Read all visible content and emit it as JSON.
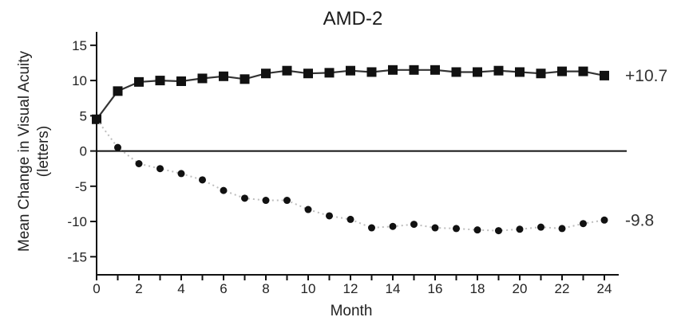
{
  "chart_data": {
    "type": "line",
    "title": "AMD-2",
    "xlabel": "Month",
    "ylabel_line1": "Mean Change in Visual Acuity",
    "ylabel_line2": "(letters)",
    "xlim": [
      0,
      24
    ],
    "ylim": [
      -17,
      16
    ],
    "xticks": [
      0,
      2,
      4,
      6,
      8,
      10,
      12,
      14,
      16,
      18,
      20,
      22,
      24
    ],
    "yticks": [
      15,
      10,
      5,
      0,
      -5,
      -10,
      -15
    ],
    "series": [
      {
        "marker": "square",
        "line_style": "solid",
        "color": "#111111",
        "x": [
          0,
          1,
          2,
          3,
          4,
          5,
          6,
          7,
          8,
          9,
          10,
          11,
          12,
          13,
          14,
          15,
          16,
          17,
          18,
          19,
          20,
          21,
          22,
          23,
          24
        ],
        "y": [
          4.5,
          8.5,
          9.8,
          10.0,
          9.9,
          10.3,
          10.6,
          10.2,
          11.0,
          11.4,
          11.0,
          11.1,
          11.4,
          11.2,
          11.5,
          11.5,
          11.5,
          11.2,
          11.2,
          11.4,
          11.2,
          11.0,
          11.3,
          11.3,
          10.7
        ],
        "end_label": "+10.7"
      },
      {
        "marker": "circle",
        "line_style": "dotted",
        "color": "#111111",
        "x": [
          0,
          1,
          2,
          3,
          4,
          5,
          6,
          7,
          8,
          9,
          10,
          11,
          12,
          13,
          14,
          15,
          16,
          17,
          18,
          19,
          20,
          21,
          22,
          23,
          24
        ],
        "y": [
          4.5,
          0.5,
          -1.8,
          -2.5,
          -3.2,
          -4.1,
          -5.6,
          -6.7,
          -7.0,
          -7.0,
          -8.3,
          -9.2,
          -9.7,
          -10.9,
          -10.7,
          -10.4,
          -10.9,
          -11.0,
          -11.2,
          -11.3,
          -11.1,
          -10.8,
          -11.0,
          -10.3,
          -9.8
        ],
        "end_label": "-9.8"
      }
    ],
    "grid": false,
    "legend": "none"
  }
}
